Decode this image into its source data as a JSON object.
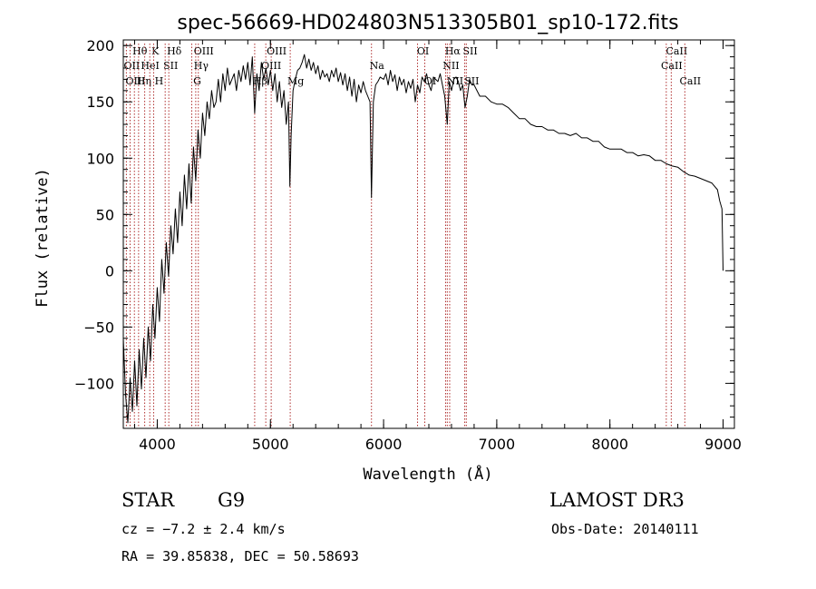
{
  "chart_data": {
    "type": "line",
    "title": "spec-56669-HD024803N513305B01_sp10-172.fits",
    "xlabel": "Wavelength (Å)",
    "ylabel": "Flux (relative)",
    "xlim": [
      3700,
      9100
    ],
    "ylim": [
      -140,
      205
    ],
    "xticks": [
      "4000",
      "5000",
      "6000",
      "7000",
      "8000",
      "9000"
    ],
    "yticks": [
      "−100",
      "−50",
      "0",
      "50",
      "100",
      "150",
      "200"
    ],
    "series": [
      {
        "x": [
          3700,
          3720,
          3740,
          3760,
          3780,
          3800,
          3820,
          3840,
          3860,
          3880,
          3900,
          3920,
          3940,
          3960,
          3980,
          4000,
          4020,
          4040,
          4060,
          4080,
          4100,
          4120,
          4140,
          4160,
          4180,
          4200,
          4220,
          4240,
          4260,
          4280,
          4300,
          4320,
          4340,
          4360,
          4380,
          4400,
          4420,
          4440,
          4460,
          4480,
          4500,
          4520,
          4540,
          4560,
          4580,
          4600,
          4620,
          4640,
          4660,
          4680,
          4700,
          4720,
          4740,
          4760,
          4780,
          4800,
          4820,
          4840,
          4861,
          4880,
          4900,
          4920,
          4940,
          4960,
          4980,
          5000,
          5020,
          5040,
          5060,
          5080,
          5100,
          5120,
          5140,
          5160,
          5172,
          5183,
          5200,
          5220,
          5240,
          5260,
          5280,
          5300,
          5320,
          5340,
          5360,
          5380,
          5400,
          5420,
          5440,
          5460,
          5480,
          5500,
          5520,
          5540,
          5560,
          5580,
          5600,
          5620,
          5640,
          5660,
          5680,
          5700,
          5720,
          5740,
          5760,
          5780,
          5800,
          5820,
          5840,
          5860,
          5880,
          5893,
          5910,
          5930,
          5950,
          5970,
          6000,
          6020,
          6040,
          6060,
          6080,
          6100,
          6120,
          6140,
          6160,
          6180,
          6200,
          6220,
          6240,
          6260,
          6280,
          6300,
          6320,
          6340,
          6360,
          6380,
          6400,
          6420,
          6440,
          6460,
          6480,
          6500,
          6520,
          6540,
          6563,
          6580,
          6600,
          6620,
          6640,
          6660,
          6680,
          6700,
          6720,
          6740,
          6760,
          6780,
          6800,
          6850,
          6900,
          6950,
          7000,
          7050,
          7100,
          7150,
          7200,
          7250,
          7300,
          7350,
          7400,
          7450,
          7500,
          7550,
          7600,
          7650,
          7700,
          7750,
          7800,
          7850,
          7900,
          7950,
          8000,
          8050,
          8100,
          8150,
          8200,
          8250,
          8300,
          8350,
          8400,
          8450,
          8500,
          8550,
          8600,
          8650,
          8700,
          8750,
          8800,
          8850,
          8900,
          8950,
          8970,
          8990,
          9000
        ],
        "y": [
          -60,
          -110,
          -135,
          -95,
          -125,
          -80,
          -120,
          -70,
          -105,
          -60,
          -95,
          -50,
          -80,
          -30,
          -60,
          -15,
          -45,
          10,
          -20,
          25,
          -5,
          40,
          15,
          55,
          25,
          70,
          40,
          85,
          55,
          95,
          60,
          110,
          80,
          125,
          100,
          140,
          120,
          150,
          135,
          160,
          145,
          150,
          170,
          150,
          175,
          160,
          180,
          165,
          170,
          175,
          160,
          178,
          168,
          182,
          170,
          185,
          165,
          190,
          140,
          175,
          160,
          185,
          170,
          180,
          165,
          178,
          160,
          175,
          150,
          168,
          145,
          160,
          130,
          150,
          75,
          120,
          160,
          170,
          178,
          180,
          185,
          192,
          180,
          188,
          178,
          185,
          175,
          182,
          170,
          178,
          172,
          175,
          168,
          178,
          172,
          180,
          168,
          176,
          165,
          175,
          160,
          172,
          155,
          170,
          150,
          165,
          158,
          168,
          160,
          155,
          150,
          65,
          150,
          165,
          168,
          172,
          170,
          175,
          165,
          178,
          168,
          174,
          160,
          172,
          165,
          170,
          158,
          168,
          162,
          170,
          150,
          165,
          158,
          172,
          168,
          175,
          165,
          160,
          172,
          170,
          168,
          175,
          165,
          155,
          130,
          168,
          160,
          170,
          172,
          168,
          160,
          165,
          145,
          155,
          170,
          165,
          165,
          155,
          155,
          150,
          148,
          148,
          145,
          140,
          135,
          135,
          130,
          128,
          128,
          125,
          125,
          122,
          122,
          120,
          122,
          118,
          118,
          115,
          115,
          110,
          108,
          108,
          108,
          105,
          105,
          102,
          103,
          102,
          98,
          98,
          95,
          93,
          92,
          88,
          85,
          84,
          82,
          80,
          78,
          72,
          62,
          55,
          0
        ]
      }
    ],
    "spectral_lines": [
      {
        "name": "Hθ",
        "wavelength": 3798,
        "row": 1
      },
      {
        "name": "OII",
        "wavelength": 3727,
        "row": 2
      },
      {
        "name": "OIII",
        "wavelength": 3760,
        "row": 3
      },
      {
        "name": "HeI",
        "wavelength": 3889,
        "row": 2
      },
      {
        "name": "Hη",
        "wavelength": 3835,
        "row": 3
      },
      {
        "name": "K",
        "wavelength": 3934,
        "row": 1
      },
      {
        "name": "SII",
        "wavelength": 4070,
        "row": 2
      },
      {
        "name": "H",
        "wavelength": 3968,
        "row": 3
      },
      {
        "name": "Hδ",
        "wavelength": 4102,
        "row": 1
      },
      {
        "name": "OIII",
        "wavelength": 4363,
        "row": 1
      },
      {
        "name": "Hγ",
        "wavelength": 4340,
        "row": 2
      },
      {
        "name": "G",
        "wavelength": 4305,
        "row": 3
      },
      {
        "name": "OIII",
        "wavelength": 5007,
        "row": 1
      },
      {
        "name": "OIII",
        "wavelength": 4959,
        "row": 2
      },
      {
        "name": "Hβ",
        "wavelength": 4861,
        "row": 3
      },
      {
        "name": "Mg",
        "wavelength": 5175,
        "row": 3
      },
      {
        "name": "Na",
        "wavelength": 5893,
        "row": 2
      },
      {
        "name": "OI",
        "wavelength": 6300,
        "row": 1
      },
      {
        "name": "OI",
        "wavelength": 6364,
        "row": 3
      },
      {
        "name": "Hα",
        "wavelength": 6563,
        "row": 1
      },
      {
        "name": "SII",
        "wavelength": 6717,
        "row": 1
      },
      {
        "name": "NII",
        "wavelength": 6548,
        "row": 2
      },
      {
        "name": "NII",
        "wavelength": 6584,
        "row": 3
      },
      {
        "name": "SII",
        "wavelength": 6731,
        "row": 3
      },
      {
        "name": "CaII",
        "wavelength": 8542,
        "row": 1
      },
      {
        "name": "CaII",
        "wavelength": 8498,
        "row": 2
      },
      {
        "name": "CaII",
        "wavelength": 8662,
        "row": 3
      }
    ],
    "line_color": "#b03030",
    "grid": false,
    "legend": false
  },
  "info": {
    "class_label": "STAR",
    "subclass_label": "G9",
    "survey": "LAMOST DR3",
    "cz": "cz = −7.2 ± 2.4 km/s",
    "obs_date": "Obs-Date: 20140111",
    "coords": "RA =  39.85838, DEC =  50.58693"
  }
}
